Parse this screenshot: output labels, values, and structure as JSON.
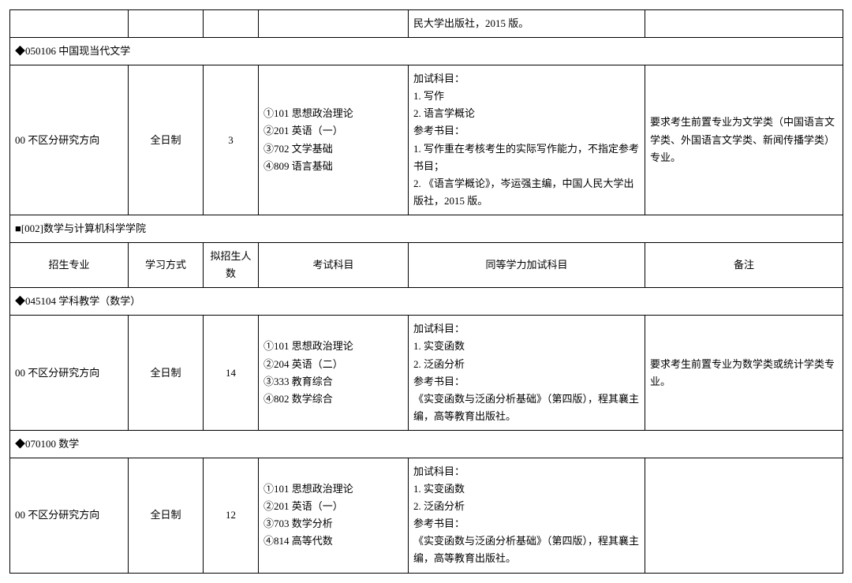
{
  "top_remnant": {
    "col4": "民大学出版社，2015 版。"
  },
  "section1": {
    "title": "◆050106 中国现当代文学",
    "row": {
      "direction": "00 不区分研究方向",
      "mode": "全日制",
      "count": "3",
      "exam": "①101 思想政治理论\n②201 英语（一）\n③702 文学基础\n④809 语言基础",
      "extra": "加试科目：\n1. 写作\n2. 语言学概论\n参考书目：\n1. 写作重在考核考生的实际写作能力，不指定参考书目；\n2. 《语言学概论》，岑运强主编，中国人民大学出版社，2015 版。",
      "remark": "要求考生前置专业为文学类（中国语言文学类、外国语言文学类、新闻传播学类）专业。"
    }
  },
  "dept2": {
    "title": "■[002]数学与计算机科学学院",
    "headers": {
      "h0": "招生专业",
      "h1": "学习方式",
      "h2": "拟招生人数",
      "h3": "考试科目",
      "h4": "同等学力加试科目",
      "h5": "备注"
    }
  },
  "section2": {
    "title": "◆045104 学科教学（数学）",
    "row": {
      "direction": "00 不区分研究方向",
      "mode": "全日制",
      "count": "14",
      "exam": "①101 思想政治理论\n②204 英语（二）\n③333 教育综合\n④802 数学综合",
      "extra": "加试科目：\n1. 实变函数\n2. 泛函分析\n参考书目：\n《实变函数与泛函分析基础》（第四版），程其襄主编，高等教育出版社。",
      "remark": "要求考生前置专业为数学类或统计学类专业。"
    }
  },
  "section3": {
    "title": "◆070100 数学",
    "row": {
      "direction": "00 不区分研究方向",
      "mode": "全日制",
      "count": "12",
      "exam": "①101 思想政治理论\n②201 英语（一）\n③703 数学分析\n④814 高等代数",
      "extra": "加试科目：\n1. 实变函数\n2. 泛函分析\n参考书目：\n《实变函数与泛函分析基础》（第四版），程其襄主编，高等教育出版社。",
      "remark": ""
    }
  }
}
